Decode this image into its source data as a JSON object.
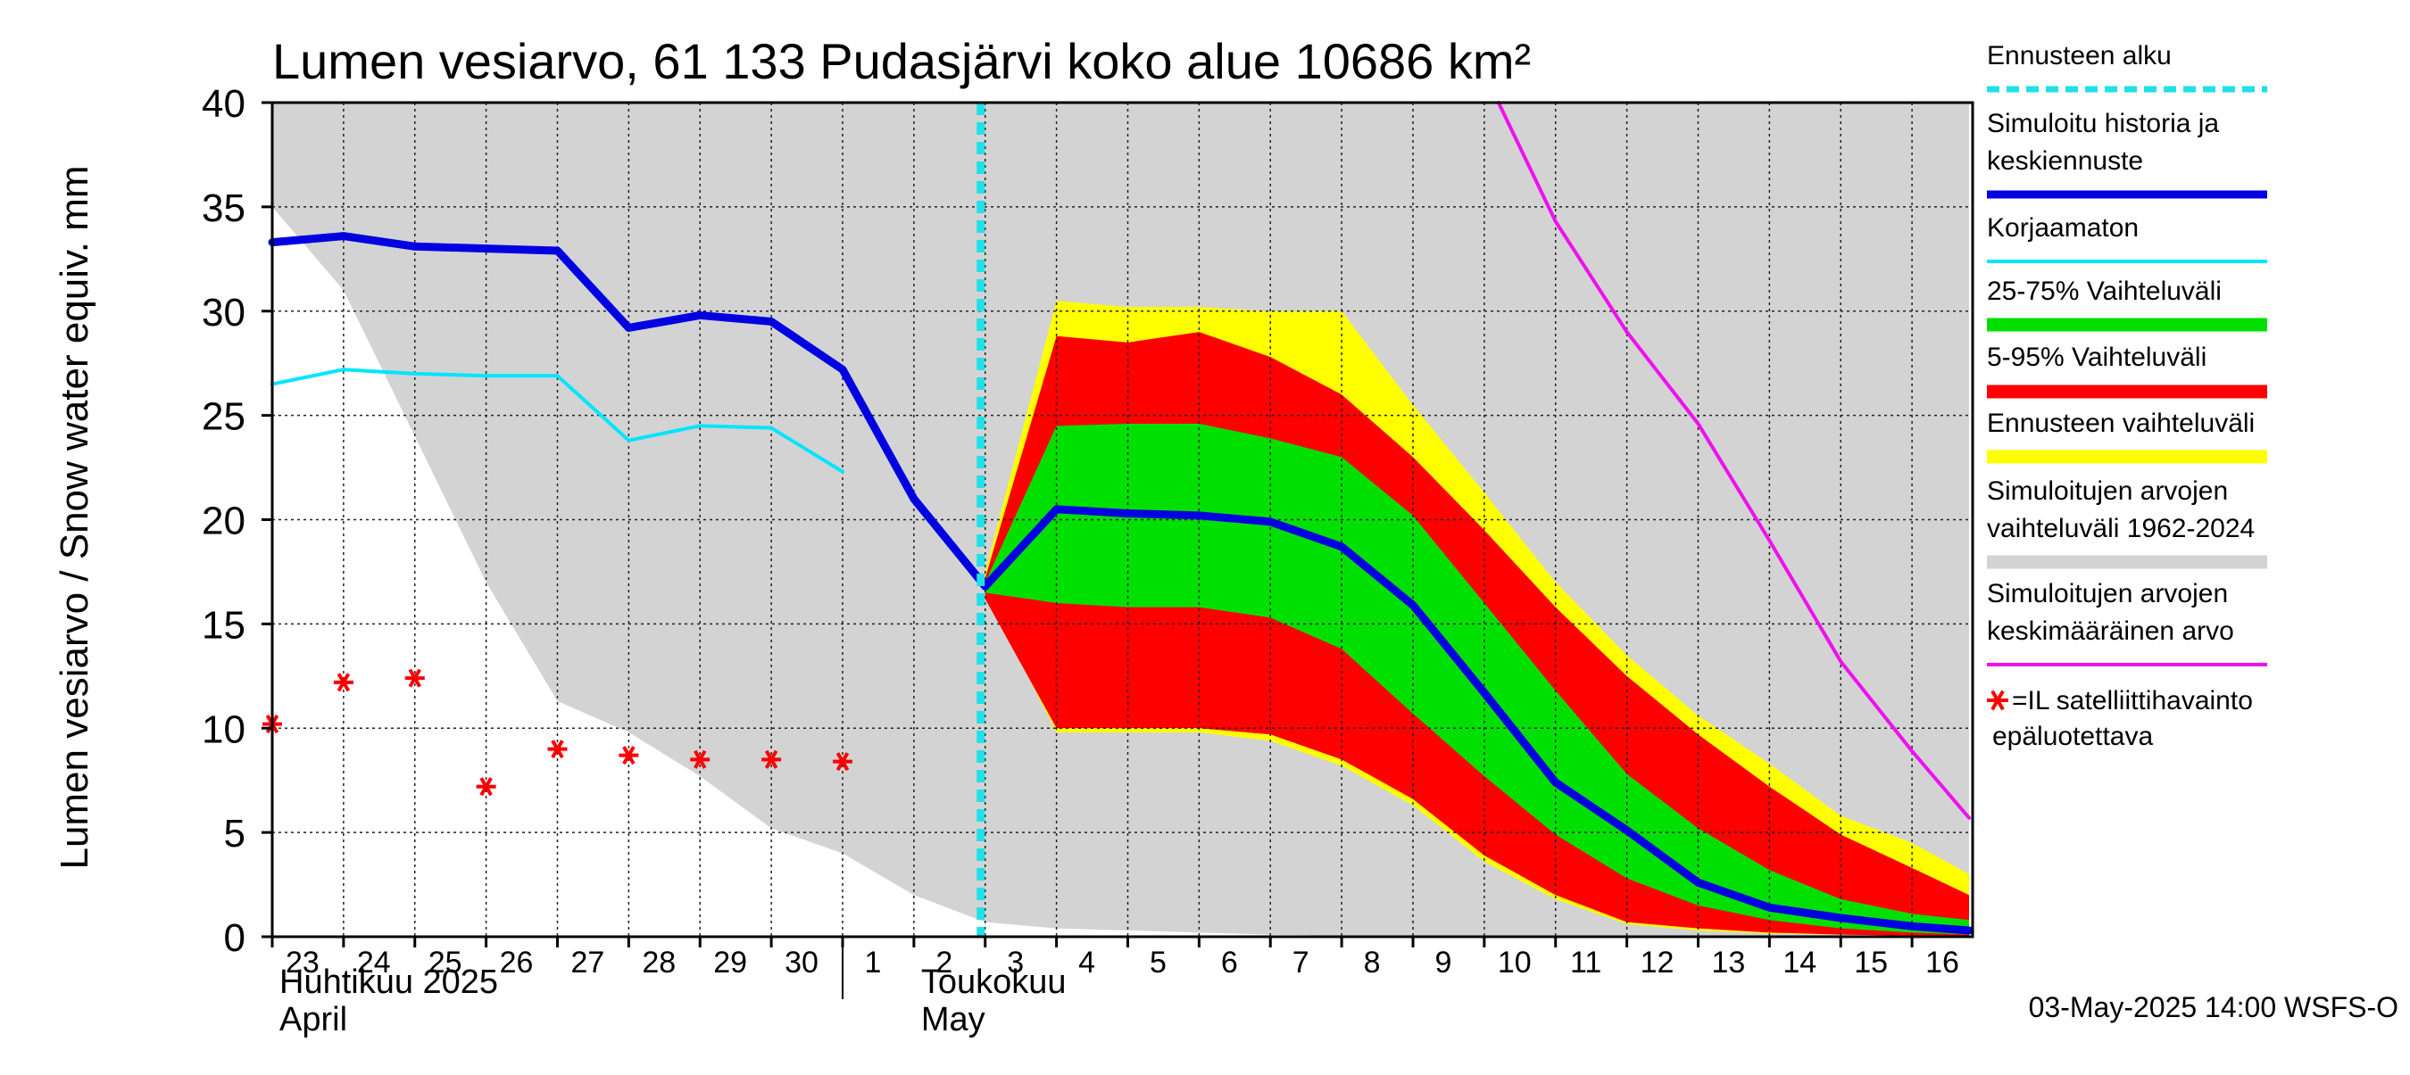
{
  "chart_data": {
    "type": "area",
    "title": "Lumen vesiarvo, 61 133 Pudasjärvi koko alue 10686 km²",
    "ylabel": "Lumen vesiarvo / Snow water equiv.    mm",
    "ylim": [
      0,
      40
    ],
    "yticks": [
      "0",
      "5",
      "10",
      "15",
      "20",
      "25",
      "30",
      "35",
      "40"
    ],
    "x": [
      "23",
      "24",
      "25",
      "26",
      "27",
      "28",
      "29",
      "30",
      "1",
      "2",
      "3",
      "4",
      "5",
      "6",
      "7",
      "8",
      "9",
      "10",
      "11",
      "12",
      "13",
      "14",
      "15",
      "16"
    ],
    "month_labels": [
      {
        "fi": "Huhtikuu  2025",
        "en": "April",
        "at": "23"
      },
      {
        "fi": "Toukokuu",
        "en": "May",
        "at": "2"
      }
    ],
    "forecast_start": "3",
    "grid": true,
    "legend_position": "right",
    "legend": [
      {
        "label": "Ennusteen alku",
        "color": "#20e0e8",
        "style": "dotted"
      },
      {
        "label": "Simuloitu historia ja keskiennuste",
        "color": "#0000e0",
        "style": "thick-line"
      },
      {
        "label": "Korjaamaton",
        "color": "#00e5ff",
        "style": "line"
      },
      {
        "label": "25-75% Vaihteluväli",
        "color": "#00e000",
        "style": "band"
      },
      {
        "label": "5-95% Vaihteluväli",
        "color": "#ff0000",
        "style": "band"
      },
      {
        "label": "Ennusteen vaihteluväli",
        "color": "#ffff00",
        "style": "band"
      },
      {
        "label": "Simuloitujen arvojen vaihteluväli 1962-2024",
        "color": "#d3d3d3",
        "style": "band"
      },
      {
        "label": "Simuloitujen arvojen keskimääräinen arvo",
        "color": "#ee11ee",
        "style": "line"
      },
      {
        "label": "=IL satelliittihavainto epäluotettava",
        "color": "#ff0000",
        "style": "star",
        "symbol": "✳"
      }
    ],
    "series": [
      {
        "name": "Simuloitujen arvojen vaihteluväli 1962-2024",
        "kind": "band",
        "color": "#d3d3d3",
        "x": [
          0,
          1,
          2,
          3,
          4,
          5,
          6,
          7,
          8,
          9,
          10,
          11,
          12,
          13,
          14,
          15,
          16,
          17,
          18,
          19,
          20,
          21,
          22,
          23,
          23.8
        ],
        "lower": [
          35,
          31,
          24,
          17,
          11.3,
          9.8,
          7.7,
          5.2,
          4.0,
          2.0,
          0.7,
          0.4,
          0.3,
          0.2,
          0.1,
          0.05,
          0,
          0,
          0,
          0,
          0,
          0,
          0,
          0,
          0
        ],
        "upper": [
          40,
          40,
          40,
          40,
          40,
          40,
          40,
          40,
          40,
          40,
          40,
          40,
          40,
          40,
          40,
          40,
          40,
          40,
          40,
          40,
          40,
          40,
          40,
          40,
          40
        ]
      },
      {
        "name": "Ennusteen vaihteluväli",
        "kind": "band",
        "color": "#ffff00",
        "x": [
          10,
          11,
          12,
          13,
          14,
          15,
          16,
          17,
          18,
          19,
          20,
          21,
          22,
          23,
          23.8
        ],
        "lower": [
          16.5,
          9.8,
          9.8,
          9.8,
          9.4,
          8.2,
          6.3,
          3.6,
          1.8,
          0.6,
          0.3,
          0.15,
          0.1,
          0.05,
          0
        ],
        "upper": [
          17.5,
          30.5,
          30.2,
          30.2,
          30.0,
          30.0,
          25.5,
          21.3,
          17.0,
          13.5,
          10.6,
          8.3,
          5.8,
          4.5,
          3.0
        ]
      },
      {
        "name": "5-95% Vaihteluväli",
        "kind": "band",
        "color": "#ff0000",
        "x": [
          10,
          11,
          12,
          13,
          14,
          15,
          16,
          17,
          18,
          19,
          20,
          21,
          22,
          23,
          23.8
        ],
        "lower": [
          16.2,
          10.0,
          10.0,
          10.0,
          9.7,
          8.5,
          6.6,
          3.9,
          2.0,
          0.7,
          0.4,
          0.2,
          0.1,
          0.05,
          0
        ],
        "upper": [
          17.2,
          28.8,
          28.5,
          29.0,
          27.8,
          26.0,
          23.0,
          19.5,
          15.8,
          12.5,
          9.7,
          7.2,
          4.9,
          3.3,
          2.0
        ]
      },
      {
        "name": "25-75% Vaihteluväli",
        "kind": "band",
        "color": "#00e000",
        "x": [
          10,
          11,
          12,
          13,
          14,
          15,
          16,
          17,
          18,
          19,
          20,
          21,
          22,
          23,
          23.8
        ],
        "lower": [
          16.5,
          16.0,
          15.8,
          15.8,
          15.3,
          13.8,
          10.7,
          7.7,
          4.9,
          2.8,
          1.5,
          0.8,
          0.4,
          0.2,
          0.1
        ],
        "upper": [
          17.0,
          24.5,
          24.6,
          24.6,
          23.9,
          23.0,
          20.2,
          16.0,
          11.8,
          7.8,
          5.2,
          3.2,
          1.8,
          1.1,
          0.8
        ]
      },
      {
        "name": "Simuloitujen arvojen keskimääräinen arvo",
        "kind": "line",
        "color": "#ee11ee",
        "width": 4,
        "x": [
          17.2,
          18,
          19,
          20,
          21,
          22,
          23,
          23.8
        ],
        "y": [
          40,
          34.3,
          29.0,
          24.6,
          19.0,
          13.2,
          8.9,
          5.7
        ]
      },
      {
        "name": "Korjaamaton",
        "kind": "line",
        "color": "#00e5ff",
        "width": 4,
        "x": [
          0,
          1,
          2,
          3,
          4,
          5,
          6,
          7,
          8
        ],
        "y": [
          26.5,
          27.2,
          27.0,
          26.9,
          26.9,
          23.8,
          24.5,
          24.4,
          22.3
        ]
      },
      {
        "name": "Simuloitu historia ja keskiennuste",
        "kind": "line",
        "color": "#0000e0",
        "width": 9,
        "x": [
          0,
          1,
          2,
          3,
          4,
          5,
          6,
          7,
          8,
          9,
          10,
          11,
          12,
          13,
          14,
          15,
          16,
          17,
          18,
          19,
          20,
          21,
          22,
          23,
          23.8
        ],
        "y": [
          33.3,
          33.6,
          33.1,
          33.0,
          32.9,
          29.2,
          29.8,
          29.5,
          27.2,
          21.0,
          16.8,
          20.5,
          20.3,
          20.2,
          19.9,
          18.7,
          15.9,
          11.7,
          7.4,
          5.1,
          2.6,
          1.4,
          0.9,
          0.5,
          0.3
        ]
      },
      {
        "name": "=IL satelliittihavainto epäluotettava",
        "kind": "star",
        "color": "#ff0000",
        "x": [
          0,
          1,
          2,
          3,
          4,
          5,
          6,
          7,
          8
        ],
        "y": [
          10.2,
          12.2,
          12.4,
          7.2,
          9.0,
          8.7,
          8.5,
          8.5,
          8.4
        ]
      }
    ],
    "footer": "03-May-2025 14:00 WSFS-O"
  }
}
